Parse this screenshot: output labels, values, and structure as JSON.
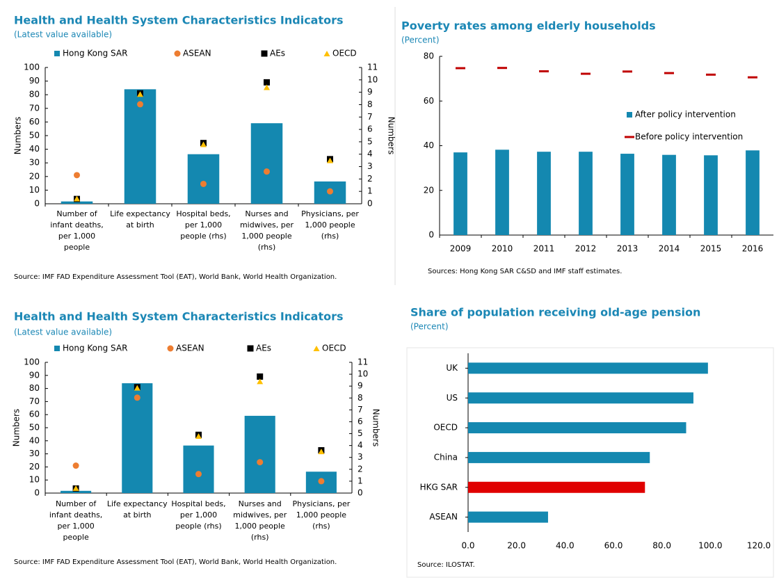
{
  "chart_data": [
    {
      "type": "bar",
      "title": "Health and Health System Characteristics Indicators",
      "subtitle": "(Latest value available)",
      "categories": [
        "Number of infant deaths, per 1,000 people",
        "Life expectancy at birth",
        "Hospital beds, per 1,000 people (rhs)",
        "Nurses and midwives, per 1,000 people (rhs)",
        "Physicians, per 1,000 people (rhs)"
      ],
      "category_axes": [
        "y",
        "y",
        "y2",
        "y2",
        "y2"
      ],
      "series": [
        {
          "name": "Hong Kong SAR",
          "marker": "bar",
          "color": "#1488b0",
          "values": [
            1.7,
            84,
            4.0,
            6.5,
            1.8
          ]
        },
        {
          "name": "ASEAN",
          "marker": "circle",
          "color": "#ed7d31",
          "values": [
            21,
            73,
            1.6,
            2.6,
            1.0
          ]
        },
        {
          "name": "AEs",
          "marker": "square",
          "color": "#000000",
          "values": [
            3.5,
            81,
            4.9,
            9.8,
            3.6
          ]
        },
        {
          "name": "OECD",
          "marker": "triangle",
          "color": "#ffc000",
          "values": [
            3.8,
            80.5,
            4.8,
            9.4,
            3.5
          ]
        }
      ],
      "ylabel": "Numbers",
      "y2label": "Numbers",
      "ylim": [
        0,
        100
      ],
      "yticks": [
        0,
        10,
        20,
        30,
        40,
        50,
        60,
        70,
        80,
        90,
        100
      ],
      "y2lim": [
        0,
        11
      ],
      "y2ticks": [
        0,
        1,
        2,
        3,
        4,
        5,
        6,
        7,
        8,
        9,
        10,
        11
      ],
      "source": "Source: IMF FAD Expenditure  Assessment Tool (EAT), World Bank, World Health Organization."
    },
    {
      "type": "bar",
      "title": "Poverty rates among elderly households",
      "subtitle": "(Percent)",
      "categories": [
        "2009",
        "2010",
        "2011",
        "2012",
        "2013",
        "2014",
        "2015",
        "2016"
      ],
      "series": [
        {
          "name": "After policy intervention",
          "marker": "bar",
          "color": "#1488b0",
          "values": [
            37,
            38.2,
            37.3,
            37.3,
            36.4,
            35.9,
            35.7,
            37.9
          ]
        },
        {
          "name": "Before policy intervention",
          "marker": "dash",
          "color": "#c00000",
          "values": [
            74.7,
            74.8,
            73.3,
            72.2,
            73.2,
            72.5,
            71.8,
            70.6
          ]
        }
      ],
      "ylim": [
        0,
        80
      ],
      "yticks": [
        0,
        20,
        40,
        60,
        80
      ],
      "source": "Sources: Hong Kong SAR C&SD and IMF staff estimates."
    },
    {
      "type": "bar",
      "title": "Health and Health System Characteristics Indicators",
      "subtitle": "(Latest value available)",
      "categories": [
        "Number of infant deaths, per 1,000 people",
        "Life expectancy at birth",
        "Hospital beds, per 1,000 people (rhs)",
        "Nurses and midwives, per 1,000 people (rhs)",
        "Physicians, per 1,000 people (rhs)"
      ],
      "category_axes": [
        "y",
        "y",
        "y2",
        "y2",
        "y2"
      ],
      "series": [
        {
          "name": "Hong Kong SAR",
          "marker": "bar",
          "color": "#1488b0",
          "values": [
            1.7,
            84,
            4.0,
            6.5,
            1.8
          ]
        },
        {
          "name": "ASEAN",
          "marker": "circle",
          "color": "#ed7d31",
          "values": [
            21,
            73,
            1.6,
            2.6,
            1.0
          ]
        },
        {
          "name": "AEs",
          "marker": "square",
          "color": "#000000",
          "values": [
            3.5,
            81,
            4.9,
            9.8,
            3.6
          ]
        },
        {
          "name": "OECD",
          "marker": "triangle",
          "color": "#ffc000",
          "values": [
            3.8,
            80.5,
            4.8,
            9.4,
            3.5
          ]
        }
      ],
      "ylabel": "Numbers",
      "y2label": "Numbers",
      "ylim": [
        0,
        100
      ],
      "yticks": [
        0,
        10,
        20,
        30,
        40,
        50,
        60,
        70,
        80,
        90,
        100
      ],
      "y2lim": [
        0,
        11
      ],
      "y2ticks": [
        0,
        1,
        2,
        3,
        4,
        5,
        6,
        7,
        8,
        9,
        10,
        11
      ],
      "source": "Source: IMF FAD Expenditure  Assessment Tool (EAT), World Bank, World Health Organization."
    },
    {
      "type": "hbar",
      "title": "Share of population receiving old-age pension",
      "subtitle": "(Percent)",
      "categories": [
        "UK",
        "US",
        "OECD",
        "China",
        "HKG SAR",
        "ASEAN"
      ],
      "values": [
        99,
        93,
        90,
        75,
        73,
        33
      ],
      "colors": [
        "#1488b0",
        "#1488b0",
        "#1488b0",
        "#1488b0",
        "#e00000",
        "#1488b0"
      ],
      "xlim": [
        0,
        120
      ],
      "xticks": [
        {
          "value": 0,
          "label": "0.0"
        },
        {
          "value": 20,
          "label": "20.0"
        },
        {
          "value": 40,
          "label": "40.0"
        },
        {
          "value": 60,
          "label": "60.0"
        },
        {
          "value": 80,
          "label": "80.0"
        },
        {
          "value": 100,
          "label": "100.0"
        },
        {
          "value": 120,
          "label": "120.0"
        }
      ],
      "source": "Source: ILOSTAT."
    }
  ]
}
